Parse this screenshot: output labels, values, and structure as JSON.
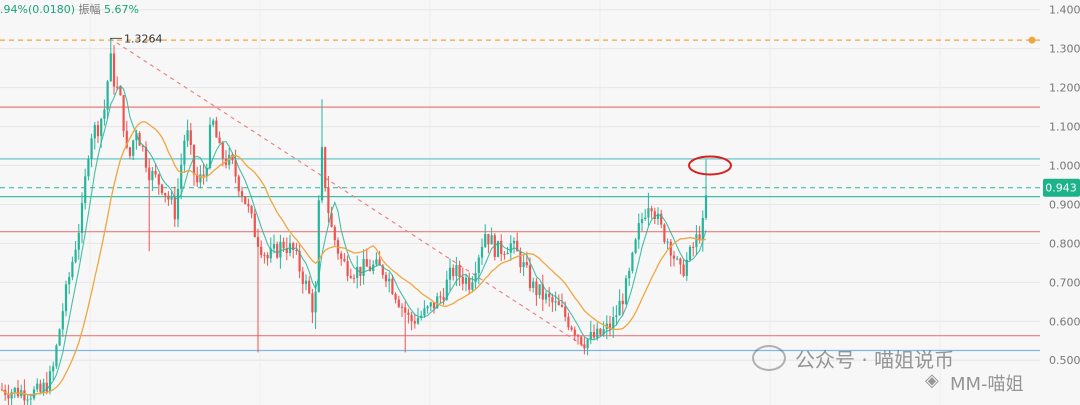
{
  "header": {
    "change_text": ".94%(0.0180)",
    "amplitude_label": "振幅",
    "amplitude_value": "5.67%"
  },
  "watermark": {
    "account_text": "公众号 · 喵姐说币",
    "handle_text": "MM-喵姐",
    "wechat_icon": "wechat-icon",
    "binance_icon": "binance-diamond-icon"
  },
  "chart_data": {
    "type": "candlestick",
    "title": "",
    "xlabel": "",
    "ylabel": "",
    "ylim": [
      0.385,
      1.425
    ],
    "y_ticks": [
      "1.400",
      "1.300",
      "1.200",
      "1.100",
      "1.000",
      "0.900",
      "0.800",
      "0.700",
      "0.600",
      "0.500"
    ],
    "grid": true,
    "current_price": "0.943",
    "high_annotation": "1.3264",
    "horizontal_lines": [
      {
        "value": 1.322,
        "color": "#f0a640",
        "style": "dashed"
      },
      {
        "value": 1.15,
        "color": "#ee7a7a",
        "style": "solid"
      },
      {
        "value": 1.017,
        "color": "#66c7c7",
        "style": "solid"
      },
      {
        "value": 0.943,
        "color": "#3fbfa8",
        "style": "dashed"
      },
      {
        "value": 0.92,
        "color": "#3fbfa8",
        "style": "solid"
      },
      {
        "value": 0.83,
        "color": "#ee7a7a",
        "style": "solid"
      },
      {
        "value": 0.563,
        "color": "#ee7a7a",
        "style": "solid"
      },
      {
        "value": 0.525,
        "color": "#7fb6e6",
        "style": "solid"
      }
    ],
    "trendline": {
      "from": [
        110,
        1.3264
      ],
      "to": [
        585,
        0.535
      ],
      "color": "#ee7a7a"
    },
    "ellipse_marker": {
      "x": 710,
      "y": 1.0,
      "color": "#d62020"
    },
    "colors": {
      "up": "#26b59a",
      "down": "#ef5350",
      "ma_fast": "#26b59a",
      "ma_slow": "#f0a640",
      "label_bg": "#1cb38a"
    },
    "keypoints": [
      [
        0,
        0.425
      ],
      [
        40,
        0.415
      ],
      [
        52,
        0.46
      ],
      [
        62,
        0.62
      ],
      [
        72,
        0.75
      ],
      [
        82,
        0.88
      ],
      [
        90,
        1.08
      ],
      [
        98,
        1.1
      ],
      [
        105,
        1.15
      ],
      [
        110,
        1.28
      ],
      [
        114,
        1.22
      ],
      [
        122,
        1.15
      ],
      [
        128,
        1.0
      ],
      [
        136,
        1.1
      ],
      [
        150,
        0.98
      ],
      [
        162,
        0.95
      ],
      [
        175,
        0.88
      ],
      [
        186,
        1.1
      ],
      [
        196,
        0.95
      ],
      [
        205,
        0.98
      ],
      [
        212,
        1.12
      ],
      [
        220,
        1.03
      ],
      [
        232,
        1.0
      ],
      [
        244,
        0.92
      ],
      [
        256,
        0.82
      ],
      [
        268,
        0.76
      ],
      [
        283,
        0.8
      ],
      [
        293,
        0.78
      ],
      [
        305,
        0.7
      ],
      [
        315,
        0.62
      ],
      [
        321,
        1.05
      ],
      [
        330,
        0.85
      ],
      [
        342,
        0.75
      ],
      [
        355,
        0.73
      ],
      [
        372,
        0.74
      ],
      [
        385,
        0.73
      ],
      [
        400,
        0.65
      ],
      [
        410,
        0.6
      ],
      [
        425,
        0.62
      ],
      [
        440,
        0.66
      ],
      [
        453,
        0.73
      ],
      [
        470,
        0.7
      ],
      [
        485,
        0.83
      ],
      [
        497,
        0.78
      ],
      [
        510,
        0.8
      ],
      [
        520,
        0.76
      ],
      [
        532,
        0.69
      ],
      [
        545,
        0.66
      ],
      [
        560,
        0.63
      ],
      [
        575,
        0.58
      ],
      [
        583,
        0.55
      ],
      [
        597,
        0.56
      ],
      [
        612,
        0.59
      ],
      [
        628,
        0.7
      ],
      [
        640,
        0.85
      ],
      [
        650,
        0.92
      ],
      [
        660,
        0.84
      ],
      [
        670,
        0.8
      ],
      [
        680,
        0.72
      ],
      [
        690,
        0.77
      ],
      [
        698,
        0.82
      ],
      [
        704,
        0.85
      ],
      [
        708,
        0.98
      ]
    ]
  }
}
